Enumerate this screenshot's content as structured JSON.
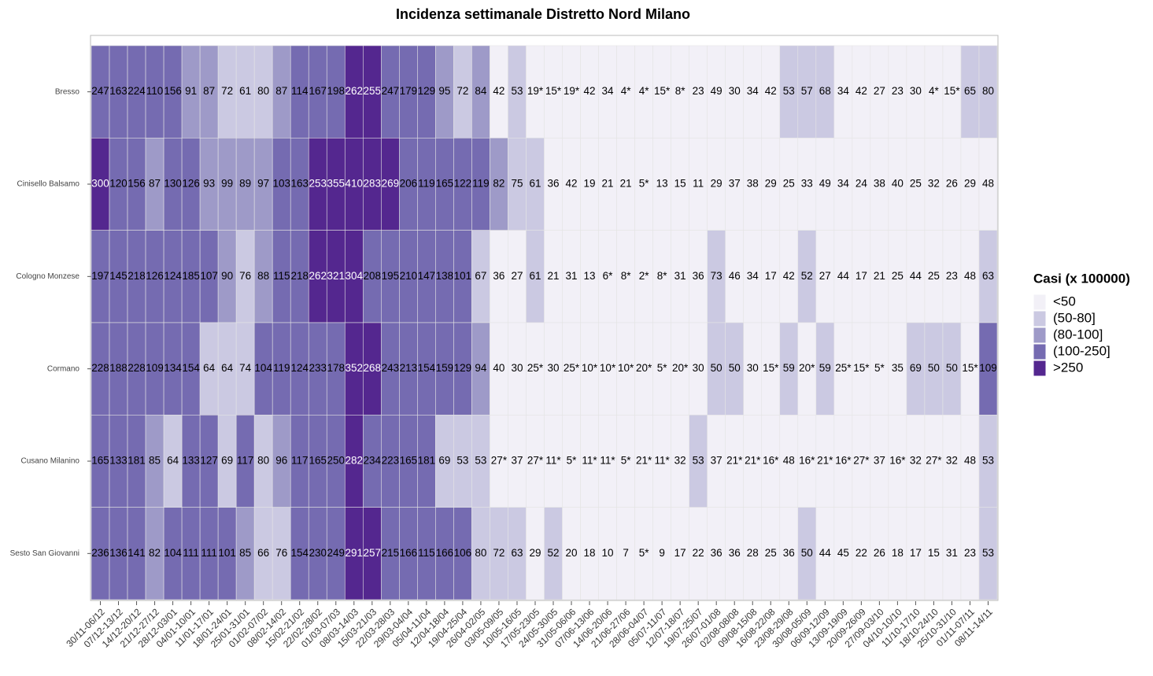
{
  "chart_data": {
    "type": "heatmap",
    "title": "Incidenza settimanale Distretto Nord Milano",
    "categories": [
      "30/11-06/12",
      "07/12-13/12",
      "14/12-20/12",
      "21/12-27/12",
      "28/12-03/01",
      "04/01-10/01",
      "11/01-17/01",
      "18/01-24/01",
      "25/01-31/01",
      "01/02-07/02",
      "08/02-14/02",
      "15/02-21/02",
      "22/02-28/02",
      "01/03-07/03",
      "08/03-14/03",
      "15/03-21/03",
      "22/03-28/03",
      "29/03-04/04",
      "05/04-11/04",
      "12/04-18/04",
      "19/04-25/04",
      "26/04-02/05",
      "03/05-09/05",
      "10/05-16/05",
      "17/05-23/05",
      "24/05-30/05",
      "31/05-06/06",
      "07/06-13/06",
      "14/06-20/06",
      "21/06-27/06",
      "28/06-04/07",
      "05/07-11/07",
      "12/07-18/07",
      "19/07-25/07",
      "26/07-01/08",
      "02/08-08/08",
      "09/08-15/08",
      "16/08-22/08",
      "23/08-29/08",
      "30/08-05/09",
      "06/09-12/09",
      "13/09-19/09",
      "20/09-26/09",
      "27/09-03/10",
      "04/10-10/10",
      "11/10-17/10",
      "18/10-24/10",
      "25/10-31/10",
      "01/11-07/11",
      "08/11-14/11"
    ],
    "series": [
      {
        "name": "Bresso",
        "values": [
          247,
          163,
          224,
          110,
          156,
          91,
          87,
          72,
          61,
          80,
          87,
          114,
          167,
          198,
          262,
          255,
          247,
          179,
          129,
          95,
          72,
          84,
          42,
          53,
          19,
          15,
          19,
          42,
          34,
          4,
          4,
          15,
          8,
          23,
          49,
          30,
          34,
          42,
          53,
          57,
          68,
          34,
          42,
          27,
          23,
          30,
          4,
          15,
          65,
          80
        ],
        "value_labels": [
          "247",
          "163",
          "224",
          "110",
          "156",
          "91",
          "87",
          "72",
          "61",
          "80",
          "87",
          "114",
          "167",
          "198",
          "262",
          "255",
          "247",
          "179",
          "129",
          "95",
          "72",
          "84",
          "42",
          "53",
          "19*",
          "15*",
          "19*",
          "42",
          "34",
          "4*",
          "4*",
          "15*",
          "8*",
          "23",
          "49",
          "30",
          "34",
          "42",
          "53",
          "57",
          "68",
          "34",
          "42",
          "27",
          "23",
          "30",
          "4*",
          "15*",
          "65",
          "80"
        ]
      },
      {
        "name": "Cinisello Balsamo",
        "values": [
          300,
          120,
          156,
          87,
          130,
          126,
          93,
          99,
          89,
          97,
          103,
          163,
          253,
          355,
          410,
          283,
          269,
          206,
          119,
          165,
          122,
          119,
          82,
          75,
          61,
          36,
          42,
          19,
          21,
          21,
          5,
          13,
          15,
          11,
          29,
          37,
          38,
          29,
          25,
          33,
          49,
          34,
          24,
          38,
          40,
          25,
          32,
          26,
          29,
          48
        ],
        "value_labels": [
          "300",
          "120",
          "156",
          "87",
          "130",
          "126",
          "93",
          "99",
          "89",
          "97",
          "103",
          "163",
          "253",
          "355",
          "410",
          "283",
          "269",
          "206",
          "119",
          "165",
          "122",
          "119",
          "82",
          "75",
          "61",
          "36",
          "42",
          "19",
          "21",
          "21",
          "5*",
          "13",
          "15",
          "11",
          "29",
          "37",
          "38",
          "29",
          "25",
          "33",
          "49",
          "34",
          "24",
          "38",
          "40",
          "25",
          "32",
          "26",
          "29",
          "48"
        ]
      },
      {
        "name": "Cologno Monzese",
        "values": [
          197,
          145,
          218,
          126,
          124,
          185,
          107,
          90,
          76,
          88,
          115,
          218,
          262,
          321,
          304,
          208,
          195,
          210,
          147,
          138,
          101,
          67,
          36,
          27,
          61,
          21,
          31,
          13,
          6,
          8,
          2,
          8,
          31,
          36,
          73,
          46,
          34,
          17,
          42,
          52,
          27,
          44,
          17,
          21,
          25,
          44,
          25,
          23,
          48,
          63
        ],
        "value_labels": [
          "197",
          "145",
          "218",
          "126",
          "124",
          "185",
          "107",
          "90",
          "76",
          "88",
          "115",
          "218",
          "262",
          "321",
          "304",
          "208",
          "195",
          "210",
          "147",
          "138",
          "101",
          "67",
          "36",
          "27",
          "61",
          "21",
          "31",
          "13",
          "6*",
          "8*",
          "2*",
          "8*",
          "31",
          "36",
          "73",
          "46",
          "34",
          "17",
          "42",
          "52",
          "27",
          "44",
          "17",
          "21",
          "25",
          "44",
          "25",
          "23",
          "48",
          "63"
        ]
      },
      {
        "name": "Cormano",
        "values": [
          228,
          188,
          228,
          109,
          134,
          154,
          64,
          64,
          74,
          104,
          119,
          124,
          233,
          178,
          352,
          268,
          243,
          213,
          154,
          159,
          129,
          94,
          40,
          30,
          25,
          30,
          25,
          10,
          10,
          10,
          20,
          5,
          20,
          30,
          50,
          50,
          30,
          15,
          59,
          20,
          59,
          25,
          15,
          5,
          35,
          69,
          50,
          50,
          15,
          109
        ],
        "value_labels": [
          "228",
          "188",
          "228",
          "109",
          "134",
          "154",
          "64",
          "64",
          "74",
          "104",
          "119",
          "124",
          "233",
          "178",
          "352",
          "268",
          "243",
          "213",
          "154",
          "159",
          "129",
          "94",
          "40",
          "30",
          "25*",
          "30",
          "25*",
          "10*",
          "10*",
          "10*",
          "20*",
          "5*",
          "20*",
          "30",
          "50",
          "50",
          "30",
          "15*",
          "59",
          "20*",
          "59",
          "25*",
          "15*",
          "5*",
          "35",
          "69",
          "50",
          "50",
          "15*",
          "109"
        ]
      },
      {
        "name": "Cusano Milanino",
        "values": [
          165,
          133,
          181,
          85,
          64,
          133,
          127,
          69,
          117,
          80,
          96,
          117,
          165,
          250,
          282,
          234,
          223,
          165,
          181,
          69,
          53,
          53,
          27,
          37,
          27,
          11,
          5,
          11,
          11,
          5,
          21,
          11,
          32,
          53,
          37,
          21,
          21,
          16,
          48,
          16,
          21,
          16,
          27,
          37,
          16,
          32,
          27,
          32,
          48,
          53
        ],
        "value_labels": [
          "165",
          "133",
          "181",
          "85",
          "64",
          "133",
          "127",
          "69",
          "117",
          "80",
          "96",
          "117",
          "165",
          "250",
          "282",
          "234",
          "223",
          "165",
          "181",
          "69",
          "53",
          "53",
          "27*",
          "37",
          "27*",
          "11*",
          "5*",
          "11*",
          "11*",
          "5*",
          "21*",
          "11*",
          "32",
          "53",
          "37",
          "21*",
          "21*",
          "16*",
          "48",
          "16*",
          "21*",
          "16*",
          "27*",
          "37",
          "16*",
          "32",
          "27*",
          "32",
          "48",
          "53"
        ]
      },
      {
        "name": "Sesto San Giovanni",
        "values": [
          236,
          136,
          141,
          82,
          104,
          111,
          111,
          101,
          85,
          66,
          76,
          154,
          230,
          249,
          291,
          257,
          215,
          166,
          115,
          166,
          106,
          80,
          72,
          63,
          29,
          52,
          20,
          18,
          10,
          7,
          5,
          9,
          17,
          22,
          36,
          36,
          28,
          25,
          36,
          50,
          44,
          45,
          22,
          26,
          18,
          17,
          15,
          31,
          23,
          53
        ],
        "value_labels": [
          "236",
          "136",
          "141",
          "82",
          "104",
          "111",
          "111",
          "101",
          "85",
          "66",
          "76",
          "154",
          "230",
          "249",
          "291",
          "257",
          "215",
          "166",
          "115",
          "166",
          "106",
          "80",
          "72",
          "63",
          "29",
          "52",
          "20",
          "18",
          "10",
          "7",
          "5*",
          "9",
          "17",
          "22",
          "36",
          "36",
          "28",
          "25",
          "36",
          "50",
          "44",
          "45",
          "22",
          "26",
          "18",
          "17",
          "15",
          "31",
          "23",
          "53"
        ]
      }
    ],
    "legend": {
      "title": "Casi (x 100000)",
      "labels": [
        "<50",
        "(50-80]",
        "(80-100]",
        "(100-250]",
        ">250"
      ],
      "colors": [
        "#f2f0f7",
        "#cbc9e2",
        "#9e9ac8",
        "#756bb1",
        "#54278f"
      ],
      "breaks": [
        50,
        80,
        100,
        250
      ]
    }
  }
}
